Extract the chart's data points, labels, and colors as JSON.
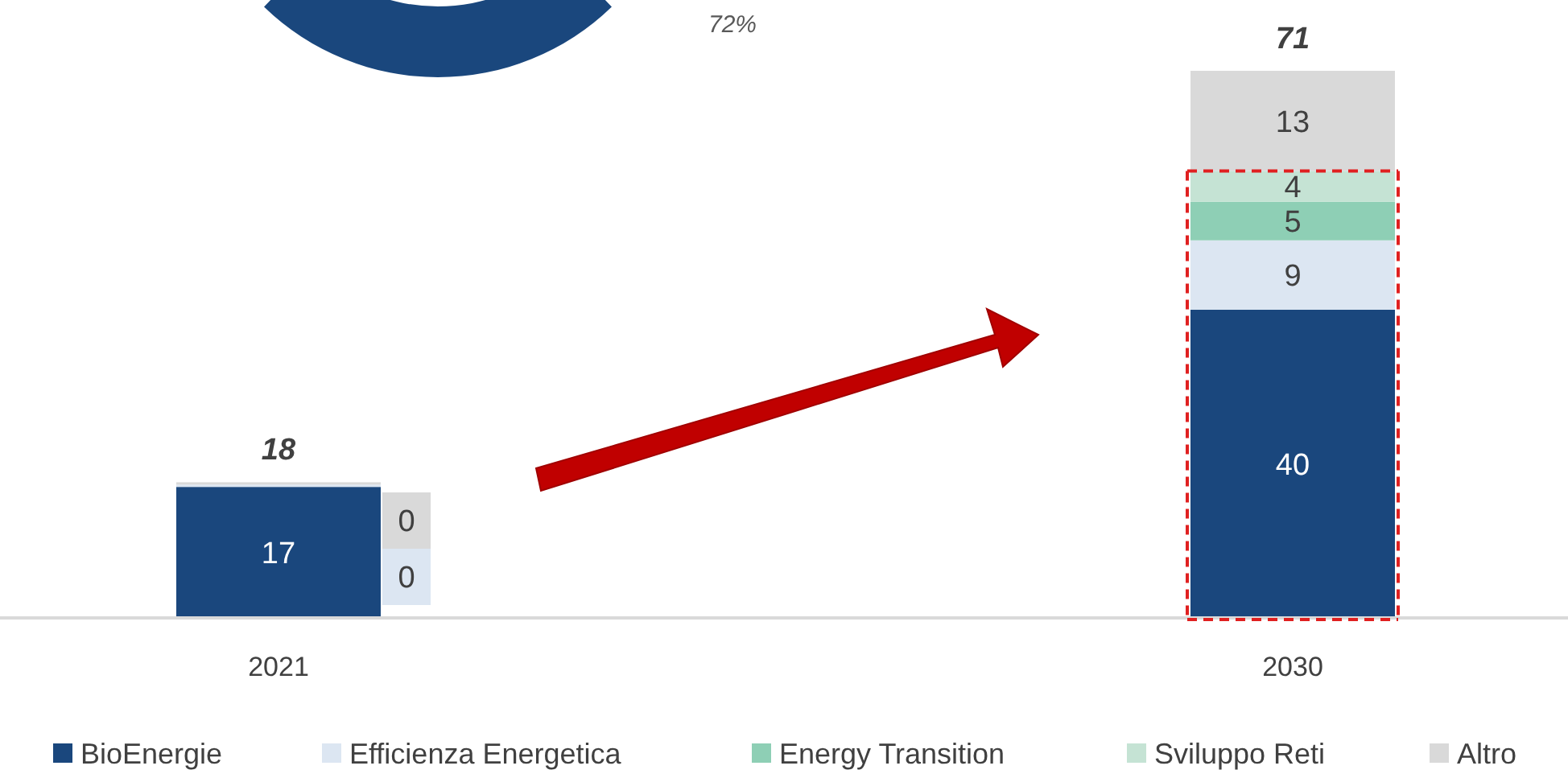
{
  "chart_data": {
    "type": "bar",
    "stacked": true,
    "categories": [
      "2021",
      "2030"
    ],
    "ylim": [
      0,
      71
    ],
    "tick_labels": "x",
    "legend": "bottom",
    "series": [
      {
        "name": "BioEnergie",
        "color": "#1a477d",
        "values": [
          17,
          40
        ],
        "value_labels": [
          "17",
          "40"
        ]
      },
      {
        "name": "Efficienza Energetica",
        "color": "#dce6f2",
        "values": [
          0.3,
          9
        ],
        "value_labels": [
          "0",
          "9"
        ]
      },
      {
        "name": "Energy Transition",
        "color": "#8ecfb5",
        "values": [
          0,
          5
        ],
        "value_labels": [
          null,
          "5"
        ]
      },
      {
        "name": "Sviluppo Reti",
        "color": "#c5e3d4",
        "values": [
          0,
          4
        ],
        "value_labels": [
          null,
          "4"
        ]
      },
      {
        "name": "Altro",
        "color": "#d9d9d9",
        "values": [
          0.3,
          13
        ],
        "value_labels": [
          "0",
          "13"
        ]
      }
    ],
    "totals": [
      "18",
      "71"
    ],
    "annotations": [
      "72%"
    ]
  }
}
